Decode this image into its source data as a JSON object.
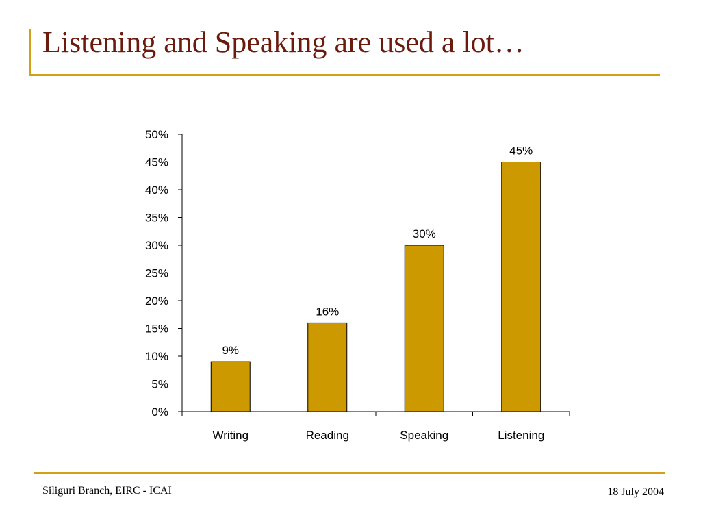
{
  "slide": {
    "title": "Listening and Speaking are used a lot…",
    "footer_left": "Siliguri Branch, EIRC - ICAI",
    "footer_right": "18 July 2004"
  },
  "colors": {
    "accent": "#d4a017",
    "title": "#6b1a0e",
    "bar_fill": "#cc9900",
    "bar_stroke": "#000000"
  },
  "chart_data": {
    "type": "bar",
    "categories": [
      "Writing",
      "Reading",
      "Speaking",
      "Listening"
    ],
    "values": [
      9,
      16,
      30,
      45
    ],
    "data_labels": [
      "9%",
      "16%",
      "30%",
      "45%"
    ],
    "y_ticks": [
      "0%",
      "5%",
      "10%",
      "15%",
      "20%",
      "25%",
      "30%",
      "35%",
      "40%",
      "45%",
      "50%"
    ],
    "ylim": [
      0,
      50
    ],
    "y_step": 5,
    "title": "",
    "xlabel": "",
    "ylabel": "",
    "grid": false,
    "legend": "none"
  }
}
